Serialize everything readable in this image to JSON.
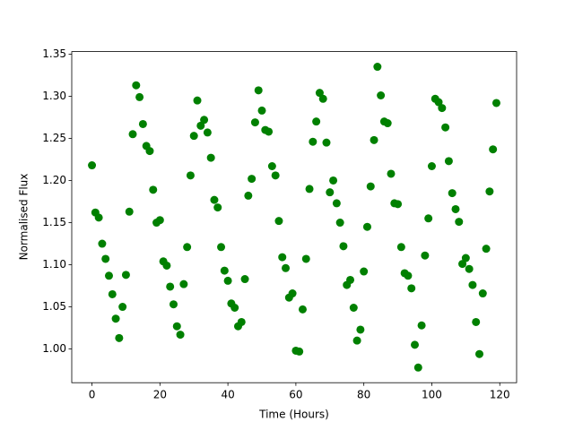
{
  "chart_data": {
    "type": "scatter",
    "xlabel": "Time (Hours)",
    "ylabel": "Normalised Flux",
    "color": "#008000",
    "x": [
      0,
      1,
      2,
      3,
      4,
      5,
      6,
      7,
      8,
      9,
      10,
      11,
      12,
      13,
      14,
      15,
      16,
      17,
      18,
      19,
      20,
      21,
      22,
      23,
      24,
      25,
      26,
      27,
      28,
      29,
      30,
      31,
      32,
      33,
      34,
      35,
      36,
      37,
      38,
      39,
      40,
      41,
      42,
      43,
      44,
      45,
      46,
      47,
      48,
      49,
      50,
      51,
      52,
      53,
      54,
      55,
      56,
      57,
      58,
      59,
      60,
      61,
      62,
      63,
      64,
      65,
      66,
      67,
      68,
      69,
      70,
      71,
      72,
      73,
      74,
      75,
      76,
      77,
      78,
      79,
      80,
      81,
      82,
      83,
      84,
      85,
      86,
      87,
      88,
      89,
      90,
      91,
      92,
      93,
      94,
      95,
      96,
      97,
      98,
      99,
      100,
      101,
      102,
      103,
      104,
      105,
      106,
      107,
      108,
      109,
      110,
      111,
      112,
      113,
      114,
      115,
      116,
      117,
      118,
      119
    ],
    "values": [
      1.218,
      1.162,
      1.156,
      1.125,
      1.107,
      1.087,
      1.065,
      1.036,
      1.013,
      1.05,
      1.088,
      1.163,
      1.255,
      1.313,
      1.299,
      1.267,
      1.241,
      1.235,
      1.189,
      1.15,
      1.153,
      1.104,
      1.099,
      1.074,
      1.053,
      1.027,
      1.017,
      1.077,
      1.121,
      1.206,
      1.253,
      1.295,
      1.265,
      1.272,
      1.257,
      1.227,
      1.177,
      1.168,
      1.121,
      1.093,
      1.081,
      1.054,
      1.049,
      1.027,
      1.032,
      1.083,
      1.182,
      1.202,
      1.269,
      1.307,
      1.283,
      1.26,
      1.258,
      1.217,
      1.206,
      1.152,
      1.109,
      1.096,
      1.061,
      1.066,
      0.998,
      0.997,
      1.047,
      1.107,
      1.19,
      1.246,
      1.27,
      1.304,
      1.297,
      1.245,
      1.186,
      1.2,
      1.173,
      1.15,
      1.122,
      1.076,
      1.082,
      1.049,
      1.01,
      1.023,
      1.092,
      1.145,
      1.193,
      1.248,
      1.335,
      1.301,
      1.27,
      1.268,
      1.208,
      1.173,
      1.172,
      1.121,
      1.09,
      1.087,
      1.072,
      1.005,
      0.978,
      1.028,
      1.111,
      1.155,
      1.217,
      1.297,
      1.293,
      1.286,
      1.263,
      1.223,
      1.185,
      1.166,
      1.151,
      1.101,
      1.108,
      1.095,
      1.076,
      1.032,
      0.994,
      1.066,
      1.119,
      1.187,
      1.237,
      1.292
    ],
    "xlim": [
      -5.95,
      124.95
    ],
    "ylim": [
      0.96,
      1.353
    ],
    "xticks": [
      0,
      20,
      40,
      60,
      80,
      100,
      120
    ],
    "yticks": [
      {
        "value": 1.0,
        "label": "1.00"
      },
      {
        "value": 1.05,
        "label": "1.05"
      },
      {
        "value": 1.1,
        "label": "1.10"
      },
      {
        "value": 1.15,
        "label": "1.15"
      },
      {
        "value": 1.2,
        "label": "1.20"
      },
      {
        "value": 1.25,
        "label": "1.25"
      },
      {
        "value": 1.3,
        "label": "1.30"
      },
      {
        "value": 1.35,
        "label": "1.35"
      }
    ]
  }
}
